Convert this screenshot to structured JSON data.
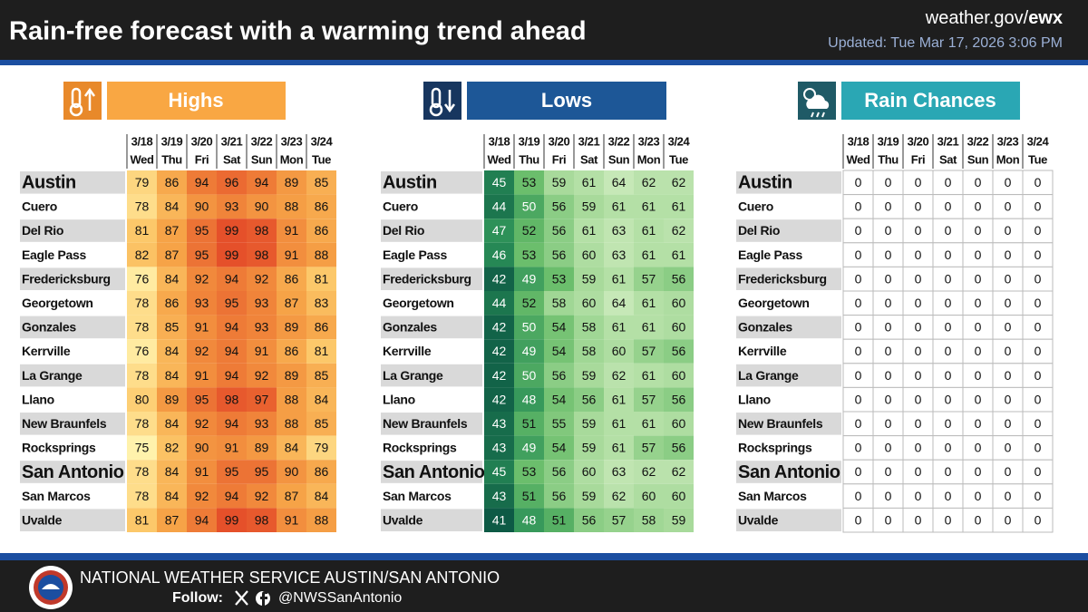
{
  "header": {
    "title": "Rain-free forecast with a warming trend ahead",
    "site": "weather.gov/",
    "site_office": "ewx",
    "updated": "Updated: Tue Mar 17, 2026 3:06 PM"
  },
  "dates": [
    "3/18",
    "3/19",
    "3/20",
    "3/21",
    "3/22",
    "3/23",
    "3/24"
  ],
  "days": [
    "Wed",
    "Thu",
    "Fri",
    "Sat",
    "Sun",
    "Mon",
    "Tue"
  ],
  "cities": [
    "Austin",
    "Cuero",
    "Del Rio",
    "Eagle Pass",
    "Fredericksburg",
    "Georgetown",
    "Gonzales",
    "Kerrville",
    "La Grange",
    "Llano",
    "New Braunfels",
    "Rocksprings",
    "San Antonio",
    "San Marcos",
    "Uvalde"
  ],
  "tables": [
    {
      "title": "Highs",
      "values": [
        [
          79,
          86,
          94,
          96,
          94,
          89,
          85
        ],
        [
          78,
          84,
          90,
          93,
          90,
          88,
          86
        ],
        [
          81,
          87,
          95,
          99,
          98,
          91,
          86
        ],
        [
          82,
          87,
          95,
          99,
          98,
          91,
          88
        ],
        [
          76,
          84,
          92,
          94,
          92,
          86,
          81
        ],
        [
          78,
          86,
          93,
          95,
          93,
          87,
          83
        ],
        [
          78,
          85,
          91,
          94,
          93,
          89,
          86
        ],
        [
          76,
          84,
          92,
          94,
          91,
          86,
          81
        ],
        [
          78,
          84,
          91,
          94,
          92,
          89,
          85
        ],
        [
          80,
          89,
          95,
          98,
          97,
          88,
          84
        ],
        [
          78,
          84,
          92,
          94,
          93,
          88,
          85
        ],
        [
          75,
          82,
          90,
          91,
          89,
          84,
          79
        ],
        [
          78,
          84,
          91,
          95,
          95,
          90,
          86
        ],
        [
          78,
          84,
          92,
          94,
          92,
          87,
          84
        ],
        [
          81,
          87,
          94,
          99,
          98,
          91,
          88
        ]
      ]
    },
    {
      "title": "Lows",
      "values": [
        [
          45,
          53,
          59,
          61,
          64,
          62,
          62
        ],
        [
          44,
          50,
          56,
          59,
          61,
          61,
          61
        ],
        [
          47,
          52,
          56,
          61,
          63,
          61,
          62
        ],
        [
          46,
          53,
          56,
          60,
          63,
          61,
          61
        ],
        [
          42,
          49,
          53,
          59,
          61,
          57,
          56
        ],
        [
          44,
          52,
          58,
          60,
          64,
          61,
          60
        ],
        [
          42,
          50,
          54,
          58,
          61,
          61,
          60
        ],
        [
          42,
          49,
          54,
          58,
          60,
          57,
          56
        ],
        [
          42,
          50,
          56,
          59,
          62,
          61,
          60
        ],
        [
          42,
          48,
          54,
          56,
          61,
          57,
          56
        ],
        [
          43,
          51,
          55,
          59,
          61,
          61,
          60
        ],
        [
          43,
          49,
          54,
          59,
          61,
          57,
          56
        ],
        [
          45,
          53,
          56,
          60,
          63,
          62,
          62
        ],
        [
          43,
          51,
          56,
          59,
          62,
          60,
          60
        ],
        [
          41,
          48,
          51,
          56,
          57,
          58,
          59
        ]
      ]
    },
    {
      "title": "Rain Chances",
      "values": [
        [
          0,
          0,
          0,
          0,
          0,
          0,
          0
        ],
        [
          0,
          0,
          0,
          0,
          0,
          0,
          0
        ],
        [
          0,
          0,
          0,
          0,
          0,
          0,
          0
        ],
        [
          0,
          0,
          0,
          0,
          0,
          0,
          0
        ],
        [
          0,
          0,
          0,
          0,
          0,
          0,
          0
        ],
        [
          0,
          0,
          0,
          0,
          0,
          0,
          0
        ],
        [
          0,
          0,
          0,
          0,
          0,
          0,
          0
        ],
        [
          0,
          0,
          0,
          0,
          0,
          0,
          0
        ],
        [
          0,
          0,
          0,
          0,
          0,
          0,
          0
        ],
        [
          0,
          0,
          0,
          0,
          0,
          0,
          0
        ],
        [
          0,
          0,
          0,
          0,
          0,
          0,
          0
        ],
        [
          0,
          0,
          0,
          0,
          0,
          0,
          0
        ],
        [
          0,
          0,
          0,
          0,
          0,
          0,
          0
        ],
        [
          0,
          0,
          0,
          0,
          0,
          0,
          0
        ],
        [
          0,
          0,
          0,
          0,
          0,
          0,
          0
        ]
      ]
    }
  ],
  "footer": {
    "office": "NATIONAL WEATHER SERVICE AUSTIN/SAN ANTONIO",
    "follow": "Follow:",
    "handle": "@NWSSanAntonio"
  }
}
